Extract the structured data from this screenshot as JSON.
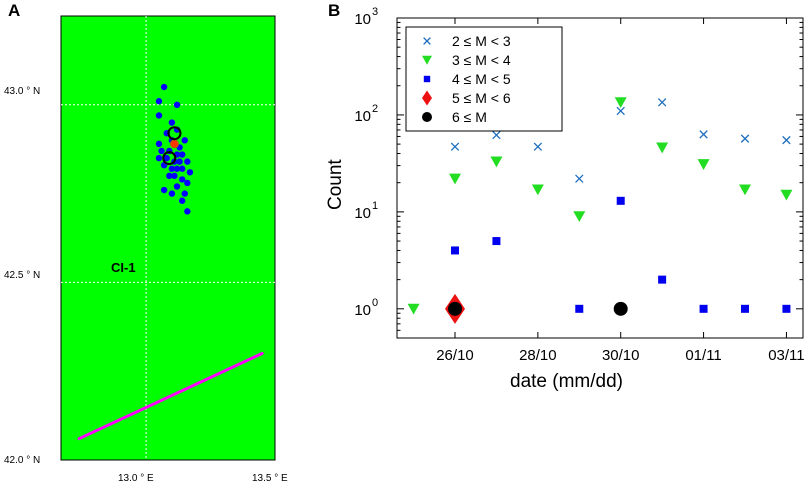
{
  "panels": {
    "a": "A",
    "b": "B"
  },
  "map": {
    "lat_labels": [
      "43.0 ° N",
      "42.5 ° N",
      "42.0 ° N"
    ],
    "lon_labels": [
      "13.0 ° E",
      "13.5 ° E"
    ],
    "lat_range": [
      42.0,
      43.25
    ],
    "lon_range": [
      12.67,
      13.5
    ],
    "station_label": "CI-1",
    "events_deg": [
      [
        13.07,
        43.05
      ],
      [
        13.05,
        43.01
      ],
      [
        13.12,
        43.0
      ],
      [
        13.05,
        42.97
      ],
      [
        13.1,
        42.95
      ],
      [
        13.12,
        42.93
      ],
      [
        13.08,
        42.92
      ],
      [
        13.05,
        42.89
      ],
      [
        13.1,
        42.9
      ],
      [
        13.13,
        42.88
      ],
      [
        13.15,
        42.9
      ],
      [
        13.06,
        42.87
      ],
      [
        13.09,
        42.87
      ],
      [
        13.12,
        42.86
      ],
      [
        13.14,
        42.86
      ],
      [
        13.05,
        42.85
      ],
      [
        13.08,
        42.85
      ],
      [
        13.11,
        42.84
      ],
      [
        13.13,
        42.84
      ],
      [
        13.16,
        42.84
      ],
      [
        13.07,
        42.83
      ],
      [
        13.1,
        42.82
      ],
      [
        13.12,
        42.82
      ],
      [
        13.14,
        42.82
      ],
      [
        13.17,
        42.81
      ],
      [
        13.09,
        42.8
      ],
      [
        13.11,
        42.8
      ],
      [
        13.14,
        42.79
      ],
      [
        13.16,
        42.78
      ],
      [
        13.12,
        42.77
      ],
      [
        13.07,
        42.76
      ],
      [
        13.1,
        42.75
      ],
      [
        13.15,
        42.75
      ],
      [
        13.14,
        42.73
      ],
      [
        13.16,
        42.7
      ]
    ],
    "large_events_deg": [
      [
        13.11,
        42.92
      ],
      [
        13.09,
        42.85
      ]
    ],
    "red_event_deg": [
      13.11,
      42.89
    ],
    "fault_line_deg": [
      [
        12.74,
        42.06
      ],
      [
        13.45,
        42.3
      ]
    ],
    "colors": {
      "land": "#00ff00",
      "grid": "#ffffff",
      "event": "#0000ff",
      "label": "#d020a0",
      "fault": "#ff00ff"
    }
  },
  "chart_data": {
    "type": "scatter",
    "title": "",
    "xlabel": "date (mm/dd)",
    "ylabel": "Count",
    "yscale": "log",
    "ylim": [
      0.5,
      1000
    ],
    "xlim": [
      24.6,
      34.4
    ],
    "x_ticks": [
      26,
      28,
      30,
      32,
      34
    ],
    "x_tick_labels": [
      "26/10",
      "28/10",
      "30/10",
      "01/11",
      "03/11"
    ],
    "y_ticks": [
      1,
      10,
      100,
      1000
    ],
    "y_tick_labels": [
      [
        "10",
        "0"
      ],
      [
        "10",
        "1"
      ],
      [
        "10",
        "2"
      ],
      [
        "10",
        "3"
      ]
    ],
    "legend_position": "top-left",
    "series": [
      {
        "name": "2 ≤ M < 3",
        "marker": "x",
        "color": "#1f6fbf",
        "points": [
          [
            26,
            47
          ],
          [
            27,
            62
          ],
          [
            28,
            47
          ],
          [
            29,
            22
          ],
          [
            30,
            110
          ],
          [
            31,
            135
          ],
          [
            32,
            63
          ],
          [
            33,
            57
          ],
          [
            34,
            55
          ]
        ]
      },
      {
        "name": "3 ≤ M < 4",
        "marker": "triangle-down",
        "color": "#22dd22",
        "points": [
          [
            25,
            1
          ],
          [
            26,
            22
          ],
          [
            27,
            33
          ],
          [
            28,
            17
          ],
          [
            29,
            9
          ],
          [
            30,
            135
          ],
          [
            31,
            46
          ],
          [
            32,
            31
          ],
          [
            33,
            17
          ],
          [
            34,
            15
          ]
        ]
      },
      {
        "name": "4 ≤ M < 5",
        "marker": "square",
        "color": "#0000ee",
        "points": [
          [
            26,
            4
          ],
          [
            27,
            5
          ],
          [
            29,
            1
          ],
          [
            30,
            13
          ],
          [
            31,
            2
          ],
          [
            32,
            1
          ],
          [
            33,
            1
          ],
          [
            34,
            1
          ]
        ]
      },
      {
        "name": "5 ≤ M < 6",
        "marker": "diamond",
        "color": "#ee1111",
        "points": [
          [
            26,
            1
          ]
        ]
      },
      {
        "name": "6 ≤ M",
        "marker": "circle",
        "color": "#000000",
        "points": [
          [
            26,
            1
          ],
          [
            30,
            1
          ]
        ]
      }
    ]
  }
}
